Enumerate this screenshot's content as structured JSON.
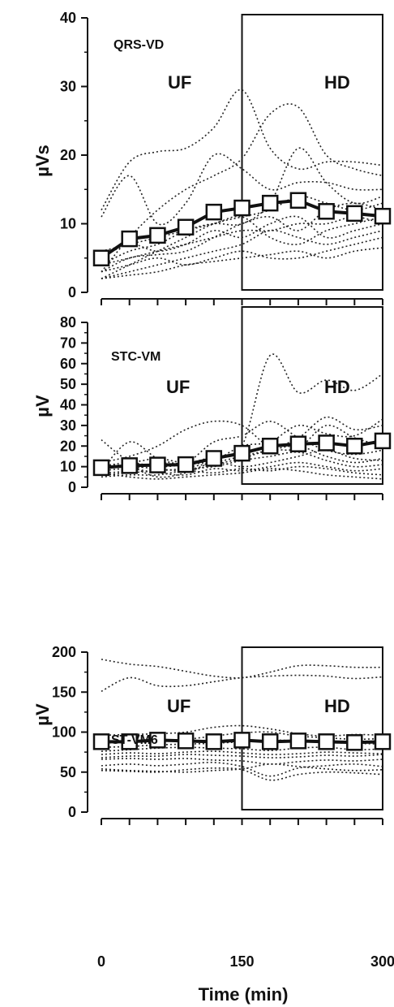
{
  "chart_data": [
    {
      "type": "line",
      "panel_label": "QRS-VD",
      "ylabel": "µVs",
      "ylim": [
        0,
        40
      ],
      "yticks": [
        0,
        10,
        20,
        30,
        40
      ],
      "phase_labels": [
        "UF",
        "HD"
      ],
      "hd_start": 150,
      "x": [
        0,
        30,
        60,
        90,
        120,
        150,
        180,
        210,
        240,
        270,
        300
      ],
      "mean": [
        5,
        7.8,
        8.3,
        9.5,
        11.7,
        12.3,
        13,
        13.4,
        11.8,
        11.5,
        11.1
      ],
      "individual": [
        [
          11,
          17,
          10,
          13,
          20,
          18,
          15,
          16,
          16,
          15,
          15
        ],
        [
          12,
          19,
          20.5,
          21,
          24,
          29.5,
          21,
          18,
          19,
          19,
          18.5
        ],
        [
          3,
          8,
          12,
          15,
          17,
          19.5,
          26,
          27,
          20,
          18,
          17
        ],
        [
          4,
          6,
          7,
          9,
          10,
          10,
          13,
          21,
          16,
          13,
          14
        ],
        [
          2,
          4,
          6,
          8,
          10,
          11,
          12,
          14,
          13,
          12,
          13
        ],
        [
          3,
          5,
          5.5,
          6,
          8,
          10,
          11,
          9,
          12,
          13,
          12
        ],
        [
          4,
          5,
          6,
          7,
          8,
          9,
          9,
          10,
          10,
          11,
          10
        ],
        [
          6,
          7,
          8,
          9,
          10,
          11,
          8,
          7,
          9,
          10,
          11
        ],
        [
          2,
          3,
          4,
          5,
          6,
          7,
          9,
          8,
          7,
          8,
          9
        ],
        [
          5,
          7,
          6,
          7,
          9,
          8,
          10,
          11,
          8,
          9,
          10
        ],
        [
          3,
          4,
          5,
          4,
          5,
          6,
          5,
          5,
          6,
          7,
          8
        ],
        [
          2,
          2.5,
          3,
          4,
          4.5,
          5,
          5.5,
          6,
          5,
          6,
          6.5
        ]
      ]
    },
    {
      "type": "line",
      "panel_label": "STC-VM",
      "ylabel": "µV",
      "ylim": [
        0,
        80
      ],
      "yticks": [
        0,
        10,
        20,
        30,
        40,
        50,
        60,
        70,
        80
      ],
      "phase_labels": [
        "UF",
        "HD"
      ],
      "hd_start": 150,
      "x": [
        0,
        30,
        60,
        90,
        120,
        150,
        180,
        210,
        240,
        270,
        300
      ],
      "mean": [
        9.5,
        10.5,
        10.8,
        11,
        14,
        16.5,
        20,
        21,
        21.5,
        20,
        22.5
      ],
      "individual": [
        [
          23,
          13,
          14,
          12,
          15,
          20,
          64,
          46,
          52,
          47,
          55
        ],
        [
          12,
          15,
          20,
          28,
          32,
          30,
          20,
          24,
          34,
          28,
          30
        ],
        [
          8,
          22,
          14,
          12,
          22,
          25,
          32,
          24,
          18,
          16,
          18
        ],
        [
          10,
          12,
          10,
          11,
          13,
          20,
          22,
          30,
          26,
          25,
          33
        ],
        [
          9,
          10,
          9,
          8,
          11,
          14,
          18,
          19,
          30,
          24,
          20
        ],
        [
          7,
          8,
          12,
          10,
          12,
          15,
          18,
          20,
          15,
          12,
          14
        ],
        [
          6,
          7,
          8,
          9,
          10,
          13,
          15,
          17,
          13,
          10,
          11
        ],
        [
          11,
          10,
          5,
          7,
          12,
          10,
          12,
          15,
          18,
          14,
          13
        ],
        [
          8,
          9,
          7,
          6,
          9,
          8,
          10,
          12,
          10,
          8,
          9
        ],
        [
          5,
          6,
          6,
          8,
          7,
          9,
          8,
          10,
          9,
          7,
          6
        ],
        [
          7,
          5,
          4,
          5,
          6,
          7,
          9,
          8,
          6,
          5,
          4
        ]
      ]
    },
    {
      "type": "line",
      "panel_label": "ST-VM6",
      "ylabel": "µV",
      "ylim": [
        0,
        200
      ],
      "yticks": [
        0,
        50,
        100,
        150,
        200
      ],
      "phase_labels": [
        "UF",
        "HD"
      ],
      "hd_start": 150,
      "x": [
        0,
        30,
        60,
        90,
        120,
        150,
        180,
        210,
        240,
        270,
        300
      ],
      "xticks": [
        0,
        150,
        300
      ],
      "xlabel": "Time (min)",
      "mean": [
        88,
        88,
        90,
        89,
        88,
        90,
        88,
        89,
        88,
        87,
        88
      ],
      "individual": [
        [
          191,
          185,
          182,
          176,
          170,
          168,
          175,
          183,
          183,
          181,
          181
        ],
        [
          151,
          168,
          158,
          158,
          163,
          168,
          170,
          171,
          170,
          167,
          169
        ],
        [
          96,
          97,
          98,
          100,
          106,
          108,
          104,
          98,
          95,
          97,
          96
        ],
        [
          86,
          88,
          89,
          91,
          95,
          99,
          100,
          95,
          93,
          91,
          92
        ],
        [
          81,
          82,
          84,
          85,
          86,
          88,
          90,
          89,
          87,
          86,
          85
        ],
        [
          76,
          78,
          80,
          81,
          80,
          79,
          77,
          80,
          81,
          78,
          79
        ],
        [
          72,
          74,
          73,
          75,
          76,
          74,
          72,
          73,
          75,
          74,
          73
        ],
        [
          68,
          70,
          70,
          72,
          71,
          70,
          68,
          69,
          71,
          70,
          72
        ],
        [
          66,
          67,
          66,
          67,
          65,
          64,
          60,
          63,
          65,
          64,
          66
        ],
        [
          58,
          60,
          58,
          60,
          62,
          57,
          45,
          55,
          58,
          60,
          57
        ],
        [
          54,
          52,
          51,
          50,
          52,
          54,
          60,
          57,
          54,
          52,
          53
        ],
        [
          52,
          51,
          50,
          53,
          55,
          53,
          40,
          47,
          50,
          49,
          47
        ]
      ]
    }
  ]
}
